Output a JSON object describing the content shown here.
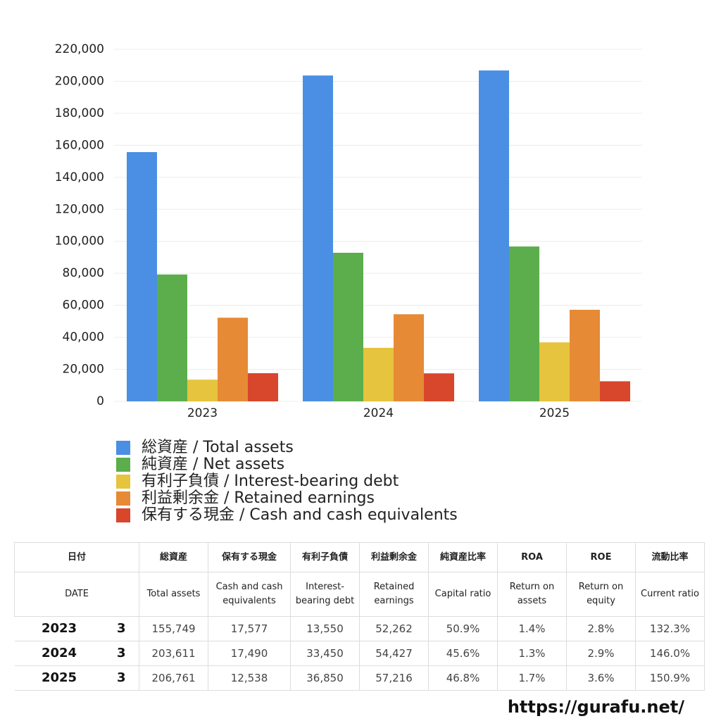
{
  "chart_data": {
    "type": "bar",
    "categories": [
      "2023",
      "2024",
      "2025"
    ],
    "series": [
      {
        "name": "総資産 / Total assets",
        "color": "#4a8fe3",
        "values": [
          155749,
          203611,
          206761
        ]
      },
      {
        "name": "純資産 / Net assets",
        "color": "#5cae4c",
        "values": [
          79276,
          92847,
          96764
        ]
      },
      {
        "name": "有利子負債 / Interest-bearing debt",
        "color": "#e6c43e",
        "values": [
          13550,
          33450,
          36850
        ]
      },
      {
        "name": "利益剰余金 / Retained earnings",
        "color": "#e68a36",
        "values": [
          52262,
          54427,
          57216
        ]
      },
      {
        "name": "保有する現金 /  Cash and cash equivalents",
        "color": "#d8462b",
        "values": [
          17577,
          17490,
          12538
        ]
      }
    ],
    "ylim": [
      0,
      220000
    ],
    "yticks": [
      0,
      {
        "value": 20000,
        "label": "20,000"
      },
      {
        "value": 40000,
        "label": "40,000"
      },
      {
        "value": 60000,
        "label": "60,000"
      },
      {
        "value": 80000,
        "label": "80,000"
      },
      {
        "value": 100000,
        "label": "100,000"
      },
      {
        "value": 120000,
        "label": "120,000"
      },
      {
        "value": 140000,
        "label": "140,000"
      },
      {
        "value": 160000,
        "label": "160,000"
      },
      {
        "value": 180000,
        "label": "180,000"
      },
      {
        "value": 200000,
        "label": "200,000"
      },
      {
        "value": 220000,
        "label": "220,000"
      }
    ],
    "grid": true
  },
  "table": {
    "header": [
      [
        "日付",
        "総資産",
        "保有する現金",
        "有利子負債",
        "利益剰余金",
        "純資産比率",
        "ROA",
        "ROE",
        "流動比率"
      ],
      [
        "DATE",
        "Total assets",
        "Cash and cash equivalents",
        "Interest-bearing debt",
        "Retained earnings",
        "Capital ratio",
        "Return on assets",
        "Return on equity",
        "Current ratio"
      ]
    ],
    "rows": [
      [
        "2023",
        "3",
        "155,749",
        "17,577",
        "13,550",
        "52,262",
        "50.9%",
        "1.4%",
        "2.8%",
        "132.3%"
      ],
      [
        "2024",
        "3",
        "203,611",
        "17,490",
        "33,450",
        "54,427",
        "45.6%",
        "1.3%",
        "2.9%",
        "146.0%"
      ],
      [
        "2025",
        "3",
        "206,761",
        "12,538",
        "36,850",
        "57,216",
        "46.8%",
        "1.7%",
        "3.6%",
        "150.9%"
      ]
    ]
  },
  "footer": {
    "url": "https://gurafu.net/"
  }
}
